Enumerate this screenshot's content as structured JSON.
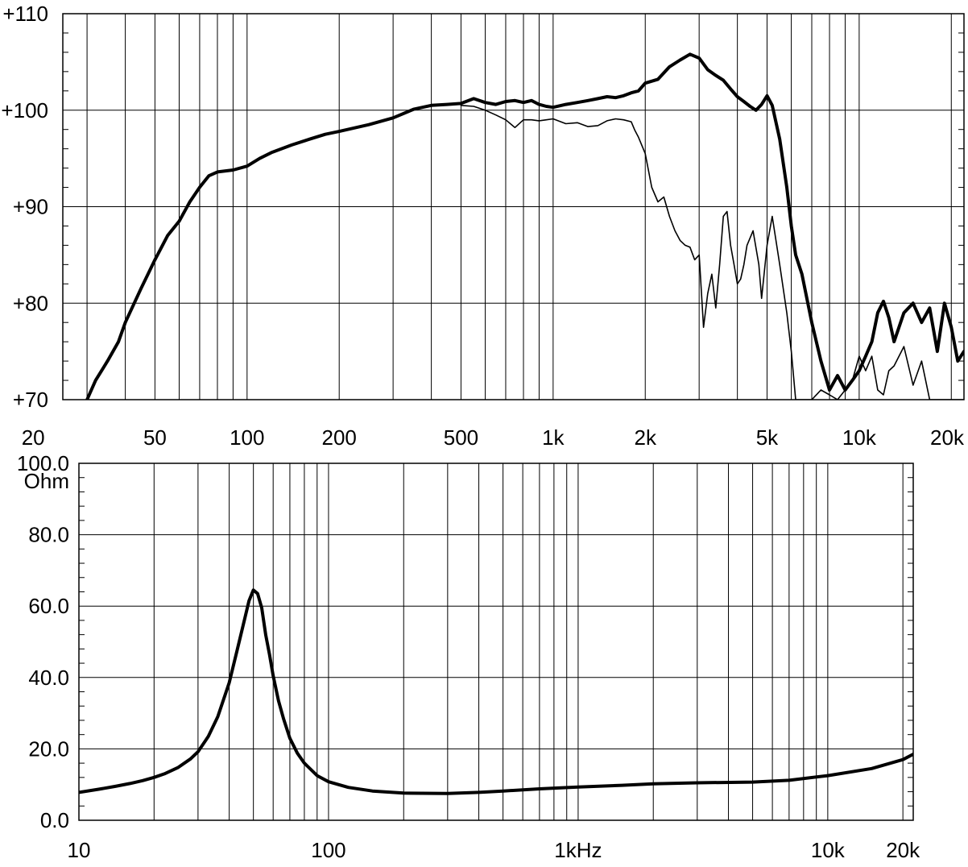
{
  "chart_data": [
    {
      "type": "line",
      "x_scale": "log",
      "xlim": [
        25,
        22000
      ],
      "ylim": [
        70,
        110
      ],
      "title": "",
      "xlabel": "",
      "ylabel": "",
      "grid": true,
      "x_ticks": [
        {
          "value": 20,
          "label": "20"
        },
        {
          "value": 50,
          "label": "50"
        },
        {
          "value": 100,
          "label": "100"
        },
        {
          "value": 200,
          "label": "200"
        },
        {
          "value": 500,
          "label": "500"
        },
        {
          "value": 1000,
          "label": "1k"
        },
        {
          "value": 2000,
          "label": "2k"
        },
        {
          "value": 5000,
          "label": "5k"
        },
        {
          "value": 10000,
          "label": "10k"
        },
        {
          "value": 20000,
          "label": "20k"
        }
      ],
      "y_ticks": [
        {
          "value": 110,
          "label": "+110"
        },
        {
          "value": 100,
          "label": "+100"
        },
        {
          "value": 90,
          "label": "+90"
        },
        {
          "value": 80,
          "label": "+80"
        },
        {
          "value": 70,
          "label": "+70"
        }
      ],
      "series": [
        {
          "style": "thick",
          "color": "#000000",
          "x": [
            30,
            32,
            35,
            38,
            40,
            45,
            50,
            55,
            60,
            65,
            70,
            75,
            80,
            90,
            100,
            110,
            120,
            140,
            160,
            180,
            200,
            250,
            300,
            350,
            400,
            450,
            500,
            550,
            600,
            650,
            700,
            750,
            800,
            850,
            900,
            950,
            1000,
            1100,
            1200,
            1300,
            1400,
            1500,
            1600,
            1700,
            1800,
            1900,
            2000,
            2200,
            2400,
            2600,
            2800,
            3000,
            3200,
            3400,
            3600,
            3800,
            4000,
            4200,
            4400,
            4600,
            4800,
            5000,
            5200,
            5500,
            5800,
            6000,
            6200,
            6500,
            7000,
            7500,
            8000,
            8500,
            9000,
            9500,
            10000,
            10500,
            11000,
            11500,
            12000,
            12500,
            13000,
            14000,
            15000,
            16000,
            17000,
            18000,
            19000,
            20000,
            21000,
            22000
          ],
          "y": [
            70,
            72,
            74,
            76,
            78,
            81.5,
            84.5,
            87,
            88.5,
            90.5,
            92,
            93.2,
            93.6,
            93.8,
            94.2,
            95,
            95.6,
            96.4,
            97,
            97.5,
            97.8,
            98.5,
            99.2,
            100.1,
            100.5,
            100.6,
            100.7,
            101.2,
            100.8,
            100.6,
            100.9,
            101,
            100.8,
            101,
            100.6,
            100.4,
            100.3,
            100.6,
            100.8,
            101,
            101.2,
            101.4,
            101.3,
            101.5,
            101.8,
            102,
            102.8,
            103.2,
            104.5,
            105.2,
            105.8,
            105.4,
            104.2,
            103.6,
            103.1,
            102.2,
            101.4,
            100.9,
            100.4,
            100,
            100.6,
            101.5,
            100.5,
            97,
            92,
            88,
            85,
            83,
            78,
            74,
            71,
            72.5,
            71,
            72,
            73,
            74.5,
            76,
            79,
            80.2,
            78.5,
            76,
            79,
            80,
            78,
            79.5,
            75,
            80,
            77.5,
            74,
            75
          ]
        },
        {
          "style": "thin",
          "color": "#000000",
          "x": [
            500,
            550,
            600,
            650,
            700,
            750,
            800,
            850,
            900,
            950,
            1000,
            1100,
            1200,
            1300,
            1400,
            1500,
            1600,
            1700,
            1800,
            1850,
            1900,
            2000,
            2100,
            2200,
            2300,
            2400,
            2500,
            2600,
            2700,
            2800,
            2900,
            3000,
            3100,
            3200,
            3300,
            3400,
            3500,
            3600,
            3700,
            3800,
            3900,
            4000,
            4100,
            4200,
            4300,
            4500,
            4700,
            4800,
            5000,
            5200,
            5500,
            5800,
            6000,
            6200,
            6500,
            7000,
            7500,
            8000,
            8500,
            9000,
            9500,
            10000,
            10500,
            11000,
            11500,
            12000,
            12500,
            13000,
            14000,
            15000,
            16000,
            17000,
            18000,
            19000,
            20000,
            21000,
            22000
          ],
          "y": [
            100.5,
            100.4,
            100,
            99.5,
            99,
            98.2,
            99,
            99,
            98.9,
            99,
            99.1,
            98.6,
            98.7,
            98.3,
            98.4,
            98.9,
            99.1,
            99,
            98.8,
            97.9,
            97.2,
            95.5,
            92,
            90.5,
            91,
            89,
            87.5,
            86.5,
            86,
            85.8,
            84.5,
            85,
            77.5,
            81,
            83,
            79.5,
            84,
            89,
            89.5,
            86,
            84,
            82,
            82.5,
            84,
            86,
            87.5,
            84,
            80.5,
            86,
            89,
            84,
            79,
            75,
            70,
            70,
            70,
            71,
            70.5,
            70,
            71,
            72,
            74.5,
            73,
            74.5,
            71,
            70.5,
            73,
            73.5,
            75.5,
            71.5,
            74,
            70,
            70,
            70,
            70,
            70,
            70
          ]
        }
      ]
    },
    {
      "type": "line",
      "x_scale": "log",
      "xlim": [
        10,
        22000
      ],
      "ylim": [
        0,
        100
      ],
      "title": "",
      "xlabel": "",
      "ylabel": "Ohm",
      "grid": true,
      "x_ticks": [
        {
          "value": 10,
          "label": "10"
        },
        {
          "value": 100,
          "label": "100"
        },
        {
          "value": 1000,
          "label": "1kHz"
        },
        {
          "value": 10000,
          "label": "10k"
        },
        {
          "value": 20000,
          "label": "20k"
        }
      ],
      "y_ticks": [
        {
          "value": 100,
          "label": "100.0"
        },
        {
          "value": 80,
          "label": "80.0"
        },
        {
          "value": 60,
          "label": "60.0"
        },
        {
          "value": 40,
          "label": "40.0"
        },
        {
          "value": 20,
          "label": "20.0"
        },
        {
          "value": 0,
          "label": "0.0"
        }
      ],
      "series": [
        {
          "style": "thick",
          "color": "#000000",
          "x": [
            10,
            12,
            14,
            16,
            18,
            20,
            22,
            25,
            28,
            30,
            33,
            36,
            40,
            43,
            46,
            48,
            50,
            52,
            54,
            56,
            58,
            60,
            63,
            66,
            70,
            75,
            80,
            90,
            100,
            120,
            150,
            200,
            300,
            400,
            500,
            700,
            1000,
            1500,
            2000,
            3000,
            5000,
            7000,
            10000,
            15000,
            20000,
            22000
          ],
          "y": [
            7.8,
            8.7,
            9.5,
            10.3,
            11.1,
            12,
            13,
            14.8,
            17.2,
            19.2,
            23.5,
            29,
            38.5,
            47.5,
            56,
            61.5,
            64.5,
            63.5,
            59.5,
            52,
            46.5,
            40.5,
            33.5,
            28.5,
            23,
            18.8,
            16,
            12.5,
            10.8,
            9.2,
            8.2,
            7.6,
            7.5,
            7.8,
            8.2,
            8.8,
            9.3,
            9.8,
            10.2,
            10.5,
            10.7,
            11.2,
            12.5,
            14.5,
            17,
            18.5
          ]
        }
      ]
    }
  ]
}
